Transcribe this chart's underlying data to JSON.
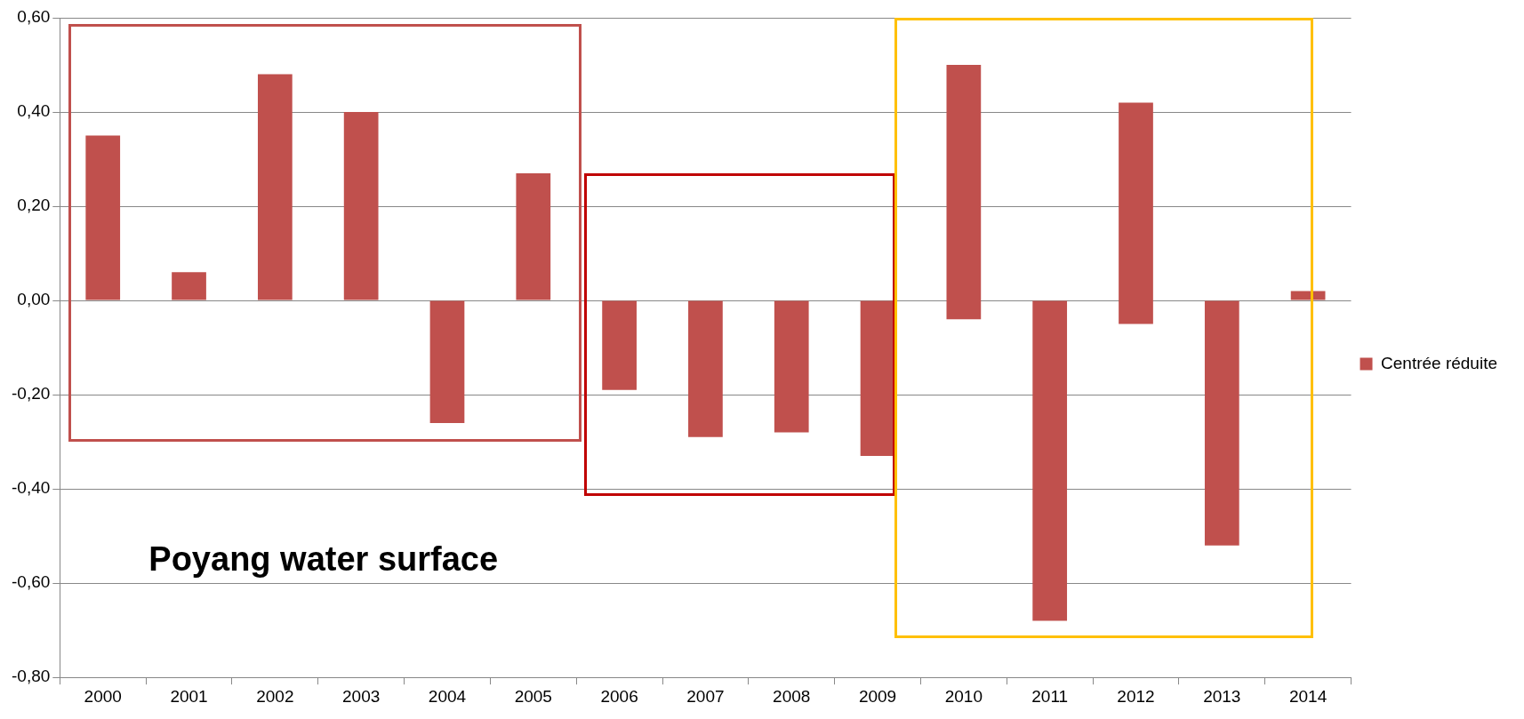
{
  "chart_data": {
    "type": "bar",
    "categories": [
      "2000",
      "2001",
      "2002",
      "2003",
      "2004",
      "2005",
      "2006",
      "2007",
      "2008",
      "2009",
      "2010",
      "2011",
      "2012",
      "2013",
      "2014"
    ],
    "series": [
      {
        "name": "Centrée réduite",
        "color": "#c0504d",
        "values": [
          0.35,
          0.06,
          0.48,
          0.4,
          -0.26,
          0.27,
          -0.19,
          -0.29,
          -0.28,
          -0.33,
          0.54,
          -0.68,
          0.47,
          -0.52,
          0.02
        ],
        "base": [
          0,
          0,
          0,
          0,
          0,
          0,
          0,
          0,
          0,
          0,
          -0.04,
          0,
          -0.05,
          0,
          0
        ]
      }
    ],
    "ylim": [
      -0.8,
      0.6
    ],
    "yticks": [
      {
        "value": -0.8,
        "label": "-0,80"
      },
      {
        "value": -0.6,
        "label": "-0,60"
      },
      {
        "value": -0.4,
        "label": "-0,40"
      },
      {
        "value": -0.2,
        "label": "-0,20"
      },
      {
        "value": 0,
        "label": "0,00"
      },
      {
        "value": 0.2,
        "label": "0,20"
      },
      {
        "value": 0.4,
        "label": "0,40"
      },
      {
        "value": 0.6,
        "label": "0,60"
      }
    ],
    "grid": "y",
    "legend": "right",
    "annotations": [
      "Poyang water surface"
    ]
  }
}
